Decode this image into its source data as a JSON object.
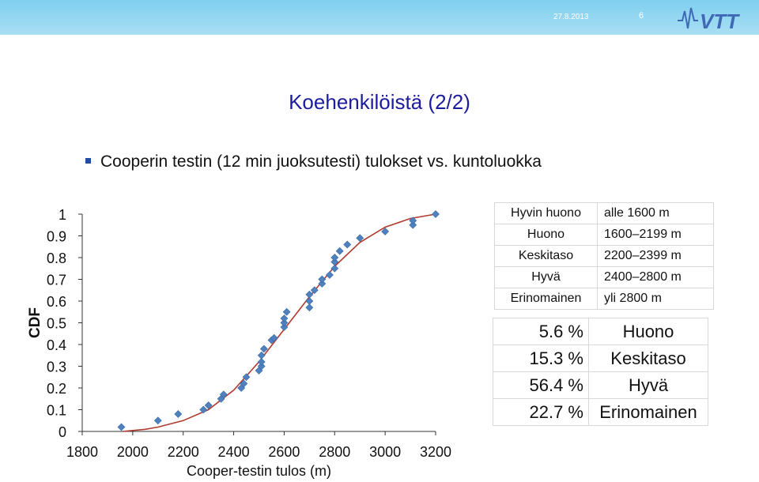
{
  "header": {
    "date": "27.8.2013",
    "page_number": "6",
    "logo_text": "VTT",
    "colors": {
      "bar": "#8fd5f1",
      "logo": "#3f69b5"
    }
  },
  "slide": {
    "title": "Koehenkilöistä (2/2)",
    "bullet": "Cooperin testin (12 min juoksutesti) tulokset vs.  kuntoluokka"
  },
  "chart_data": {
    "type": "scatter",
    "xlabel": "Cooper-testin tulos (m)",
    "ylabel": "CDF",
    "xlim": [
      1800,
      3200
    ],
    "ylim": [
      0,
      1
    ],
    "x_ticks": [
      "1800",
      "2000",
      "2200",
      "2400",
      "2600",
      "2800",
      "3000",
      "3200"
    ],
    "y_ticks": [
      "0",
      "0.1",
      "0.2",
      "0.3",
      "0.4",
      "0.5",
      "0.6",
      "0.7",
      "0.8",
      "0.9",
      "1"
    ],
    "marker_color": "#4f81bd",
    "line_color": "#b03a2e",
    "series": [
      {
        "kind": "points",
        "x": [
          1955,
          2100,
          2180,
          2280,
          2300,
          2350,
          2360,
          2430,
          2440,
          2450,
          2500,
          2510,
          2510,
          2510,
          2520,
          2550,
          2560,
          2600,
          2600,
          2600,
          2610,
          2700,
          2700,
          2700,
          2720,
          2750,
          2750,
          2780,
          2800,
          2800,
          2800,
          2820,
          2850,
          2900,
          3000,
          3110,
          3110,
          3200
        ],
        "y": [
          0.02,
          0.05,
          0.08,
          0.1,
          0.12,
          0.15,
          0.17,
          0.2,
          0.22,
          0.25,
          0.28,
          0.3,
          0.32,
          0.35,
          0.38,
          0.42,
          0.43,
          0.48,
          0.5,
          0.52,
          0.55,
          0.57,
          0.6,
          0.63,
          0.65,
          0.68,
          0.7,
          0.72,
          0.75,
          0.78,
          0.8,
          0.83,
          0.86,
          0.89,
          0.92,
          0.95,
          0.97,
          1.0
        ]
      },
      {
        "kind": "line",
        "x": [
          1960,
          2050,
          2100,
          2200,
          2300,
          2400,
          2500,
          2600,
          2700,
          2800,
          2900,
          3000,
          3100,
          3200
        ],
        "y": [
          0.0,
          0.01,
          0.02,
          0.05,
          0.1,
          0.19,
          0.32,
          0.47,
          0.62,
          0.76,
          0.87,
          0.94,
          0.98,
          1.0
        ]
      }
    ]
  },
  "classes_table": [
    {
      "name": "Hyvin huono",
      "range": "alle 1600 m"
    },
    {
      "name": "Huono",
      "range": "1600–2199 m"
    },
    {
      "name": "Keskitaso",
      "range": "2200–2399 m"
    },
    {
      "name": "Hyvä",
      "range": "2400–2800 m"
    },
    {
      "name": "Erinomainen",
      "range": "yli 2800 m"
    }
  ],
  "distribution_table": [
    {
      "pct": "5.6 %",
      "name": "Huono"
    },
    {
      "pct": "15.3 %",
      "name": "Keskitaso"
    },
    {
      "pct": "56.4 %",
      "name": "Hyvä"
    },
    {
      "pct": "22.7 %",
      "name": "Erinomainen"
    }
  ]
}
